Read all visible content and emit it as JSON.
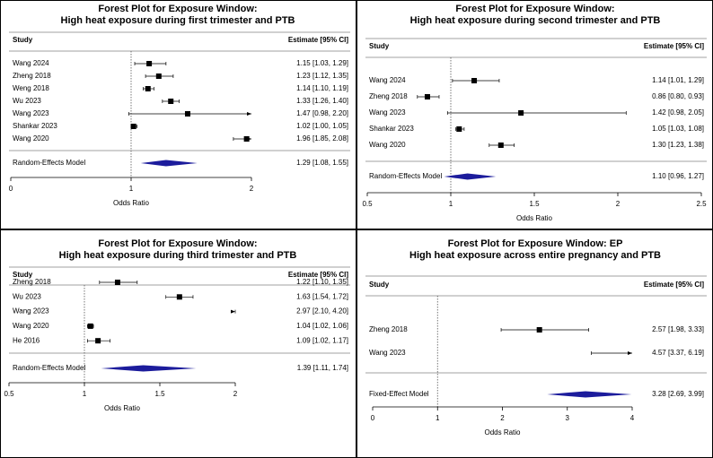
{
  "chart_data": [
    {
      "type": "forest",
      "title": "Forest Plot for Exposure Window:",
      "subtitle": "High heat exposure during first trimester and PTB",
      "study_header": "Study",
      "estimate_header": "Estimate [95% CI]",
      "xlabel": "Odds Ratio",
      "xlim": [
        0,
        2
      ],
      "xticks": [
        0,
        1,
        2
      ],
      "reference_line": 1,
      "color": "#000000",
      "categories": [
        "Wang 2024",
        "Zheng 2018",
        "Weng 2018",
        "Wu 2023",
        "Wang 2023",
        "Shankar 2023",
        "Wang 2020"
      ],
      "values": [
        1.15,
        1.23,
        1.14,
        1.33,
        1.47,
        1.02,
        1.96
      ],
      "lower": [
        1.03,
        1.12,
        1.1,
        1.26,
        0.98,
        1.0,
        1.85
      ],
      "upper": [
        1.29,
        1.35,
        1.19,
        1.4,
        2.2,
        1.05,
        2.08
      ],
      "value_labels": [
        "1.15 [1.03, 1.29]",
        "1.23 [1.12, 1.35]",
        "1.14 [1.10, 1.19]",
        "1.33 [1.26, 1.40]",
        "1.47 [0.98, 2.20]",
        "1.02 [1.00, 1.05]",
        "1.96 [1.85, 2.08]"
      ],
      "pooled": {
        "name": "Random-Effects Model",
        "value": 1.29,
        "lower": 1.08,
        "upper": 1.55,
        "value_label": "1.29 [1.08, 1.55]",
        "color": "#1c1c9c"
      }
    },
    {
      "type": "forest",
      "title": "Forest Plot for Exposure Window:",
      "subtitle": "High heat exposure during second trimester and PTB",
      "study_header": "Study",
      "estimate_header": "Estimate [95% CI]",
      "xlabel": "Odds Ratio",
      "xlim": [
        0.5,
        2.5
      ],
      "xticks": [
        0.5,
        1,
        1.5,
        2,
        2.5
      ],
      "reference_line": 1,
      "color": "#000000",
      "categories": [
        "Wang 2024",
        "Zheng 2018",
        "Wang 2023",
        "Shankar 2023",
        "Wang 2020"
      ],
      "values": [
        1.14,
        0.86,
        1.42,
        1.05,
        1.3
      ],
      "lower": [
        1.01,
        0.8,
        0.98,
        1.03,
        1.23
      ],
      "upper": [
        1.29,
        0.93,
        2.05,
        1.08,
        1.38
      ],
      "value_labels": [
        "1.14 [1.01, 1.29]",
        "0.86 [0.80, 0.93]",
        "1.42 [0.98, 2.05]",
        "1.05 [1.03, 1.08]",
        "1.30 [1.23, 1.38]"
      ],
      "pooled": {
        "name": "Random-Effects Model",
        "value": 1.1,
        "lower": 0.96,
        "upper": 1.27,
        "value_label": "1.10 [0.96, 1.27]",
        "color": "#1c1c9c"
      }
    },
    {
      "type": "forest",
      "title": "Forest Plot for Exposure Window:",
      "subtitle": "High heat exposure during third trimester and PTB",
      "study_header": "Study",
      "estimate_header": "Estimate [95% CI]",
      "xlabel": "Odds Ratio",
      "xlim": [
        0.5,
        2
      ],
      "xticks": [
        0.5,
        1,
        1.5,
        2
      ],
      "reference_line": 1,
      "color": "#000000",
      "categories": [
        "Zheng 2018",
        "Wu 2023",
        "Wang 2023",
        "Wang 2020",
        "He 2016"
      ],
      "values": [
        1.22,
        1.63,
        2.97,
        1.04,
        1.09
      ],
      "lower": [
        1.1,
        1.54,
        2.1,
        1.02,
        1.02
      ],
      "upper": [
        1.35,
        1.72,
        4.2,
        1.06,
        1.17
      ],
      "value_labels": [
        "1.22 [1.10, 1.35]",
        "1.63 [1.54, 1.72]",
        "2.97 [2.10, 4.20]",
        "1.04 [1.02, 1.06]",
        "1.09 [1.02, 1.17]"
      ],
      "pooled": {
        "name": "Random-Effects Model",
        "value": 1.39,
        "lower": 1.11,
        "upper": 1.74,
        "value_label": "1.39 [1.11, 1.74]",
        "color": "#1c1c9c"
      }
    },
    {
      "type": "forest",
      "title": "Forest Plot for Exposure Window: EP",
      "subtitle": "High heat exposure across entire pregnancy and PTB",
      "study_header": "Study",
      "estimate_header": "Estimate [95% CI]",
      "xlabel": "Odds Ratio",
      "xlim": [
        0,
        4
      ],
      "xticks": [
        0,
        1,
        2,
        3,
        4
      ],
      "reference_line": 1,
      "color": "#000000",
      "categories": [
        "Zheng 2018",
        "Wang 2023"
      ],
      "values": [
        2.57,
        4.57
      ],
      "lower": [
        1.98,
        3.37
      ],
      "upper": [
        3.33,
        6.19
      ],
      "value_labels": [
        "2.57 [1.98, 3.33]",
        "4.57 [3.37, 6.19]"
      ],
      "pooled": {
        "name": "Fixed-Effect Model",
        "value": 3.28,
        "lower": 2.69,
        "upper": 3.99,
        "value_label": "3.28 [2.69, 3.99]",
        "color": "#1c1c9c"
      }
    }
  ]
}
